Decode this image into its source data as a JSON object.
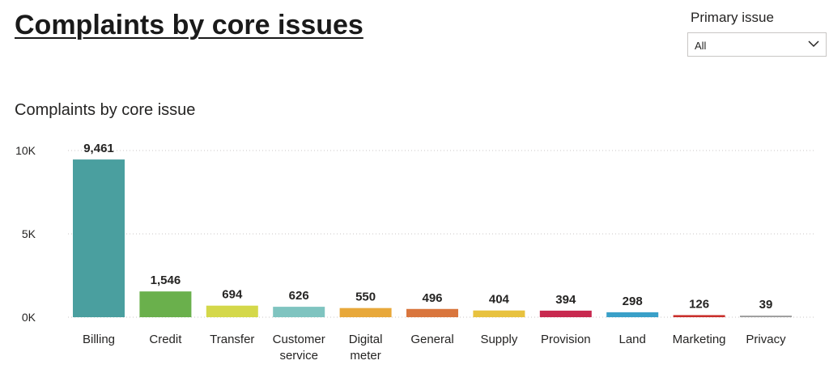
{
  "page": {
    "title": "Complaints by core issues"
  },
  "slicer": {
    "title": "Primary issue",
    "selected": "All",
    "icon": "chevron-down-icon"
  },
  "chart_data": {
    "type": "bar",
    "title": "Complaints by core issue",
    "categories": [
      [
        "Billing"
      ],
      [
        "Credit"
      ],
      [
        "Transfer"
      ],
      [
        "Customer",
        "service"
      ],
      [
        "Digital",
        "meter"
      ],
      [
        "General"
      ],
      [
        "Supply"
      ],
      [
        "Provision"
      ],
      [
        "Land"
      ],
      [
        "Marketing"
      ],
      [
        "Privacy"
      ]
    ],
    "values": [
      9461,
      1546,
      694,
      626,
      550,
      496,
      404,
      394,
      298,
      126,
      39
    ],
    "data_labels": [
      "9,461",
      "1,546",
      "694",
      "626",
      "550",
      "496",
      "404",
      "394",
      "298",
      "126",
      "39"
    ],
    "colors": [
      "#4a9f9f",
      "#6ab04c",
      "#d4d84a",
      "#7fc4c0",
      "#e8a83a",
      "#d9763e",
      "#e8c23f",
      "#c8294f",
      "#3aa0c8",
      "#c9302c",
      "#a0a0a0"
    ],
    "yticks": [
      {
        "value": 0,
        "label": "0K"
      },
      {
        "value": 5000,
        "label": "5K"
      },
      {
        "value": 10000,
        "label": "10K"
      }
    ],
    "ylim": [
      0,
      10000
    ],
    "grid": true,
    "gridlines": "dotted"
  }
}
